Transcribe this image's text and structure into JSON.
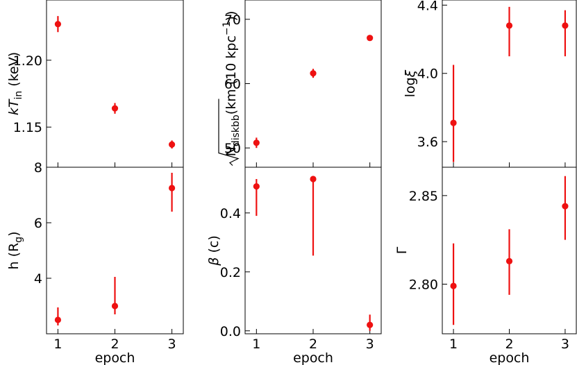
{
  "chart_data": [
    {
      "type": "scatter",
      "panel": "kTin",
      "x": [
        1,
        2,
        3
      ],
      "y": [
        1.227,
        1.164,
        1.137
      ],
      "yerr_low": [
        0.006,
        0.004,
        0.003
      ],
      "yerr_high": [
        0.006,
        0.004,
        0.003
      ],
      "xlim": [
        0.8,
        3.2
      ],
      "ylim": [
        1.12,
        1.245
      ],
      "yticks": [
        1.15,
        1.2
      ],
      "ytick_labels": [
        "1.15",
        "1.20"
      ],
      "xticks": [
        1,
        2,
        3
      ],
      "xtick_labels": [],
      "ylabel_parts": [
        "kT",
        "in",
        " (keV)"
      ],
      "xlabel": ""
    },
    {
      "type": "scatter",
      "panel": "Ndisk",
      "x": [
        1,
        2,
        3
      ],
      "y": [
        50.8,
        61.6,
        67.1
      ],
      "yerr_low": [
        0.8,
        0.7,
        0.3
      ],
      "yerr_high": [
        0.8,
        0.7,
        0.3
      ],
      "xlim": [
        0.8,
        3.2
      ],
      "ylim": [
        47,
        73
      ],
      "yticks": [
        50,
        60,
        70
      ],
      "ytick_labels": [
        "50",
        "60",
        "70"
      ],
      "xticks": [
        1,
        2,
        3
      ],
      "xtick_labels": [],
      "ylabel_parts": [
        "N",
        "diskbb",
        "(km (10 kpc",
        "−1",
        "))"
      ],
      "xlabel": ""
    },
    {
      "type": "scatter",
      "panel": "logxi",
      "x": [
        1,
        2,
        3
      ],
      "y": [
        3.71,
        4.28,
        4.28
      ],
      "yerr_low": [
        0.23,
        0.18,
        0.18
      ],
      "yerr_high": [
        0.34,
        0.11,
        0.09
      ],
      "xlim": [
        0.8,
        3.2
      ],
      "ylim": [
        3.45,
        4.43
      ],
      "yticks": [
        3.6,
        4.0,
        4.4
      ],
      "ytick_labels": [
        "3.6",
        "4.0",
        "4.4"
      ],
      "xticks": [
        1,
        2,
        3
      ],
      "xtick_labels": [],
      "ylabel_parts": [
        "log",
        "ξ"
      ],
      "xlabel": ""
    },
    {
      "type": "scatter",
      "panel": "h",
      "x": [
        1,
        2,
        3
      ],
      "y": [
        2.5,
        3.0,
        7.25
      ],
      "yerr_low": [
        0.2,
        0.3,
        0.85
      ],
      "yerr_high": [
        0.45,
        1.05,
        0.55
      ],
      "xlim": [
        0.8,
        3.2
      ],
      "ylim": [
        2.0,
        8.0
      ],
      "yticks": [
        4,
        6,
        8
      ],
      "ytick_labels": [
        "4",
        "6",
        "8"
      ],
      "xticks": [
        1,
        2,
        3
      ],
      "xtick_labels": [
        "1",
        "2",
        "3"
      ],
      "ylabel_parts": [
        "h (R",
        "g",
        ")"
      ],
      "xlabel": "epoch"
    },
    {
      "type": "scatter",
      "panel": "beta",
      "x": [
        1,
        2,
        3
      ],
      "y": [
        0.49,
        0.515,
        0.02
      ],
      "yerr_low": [
        0.1,
        0.26,
        0.02
      ],
      "yerr_high": [
        0.025,
        0.0,
        0.035
      ],
      "xlim": [
        0.8,
        3.2
      ],
      "ylim": [
        -0.01,
        0.555
      ],
      "yticks": [
        0.0,
        0.2,
        0.4
      ],
      "ytick_labels": [
        "0.0",
        "0.2",
        "0.4"
      ],
      "xticks": [
        1,
        2,
        3
      ],
      "xtick_labels": [
        "1",
        "2",
        "3"
      ],
      "ylabel_parts": [
        "β",
        " (c)"
      ],
      "xlabel": "epoch"
    },
    {
      "type": "scatter",
      "panel": "Gamma",
      "x": [
        1,
        2,
        3
      ],
      "y": [
        2.799,
        2.813,
        2.844
      ],
      "yerr_low": [
        0.022,
        0.019,
        0.019
      ],
      "yerr_high": [
        0.024,
        0.018,
        0.017
      ],
      "xlim": [
        0.8,
        3.2
      ],
      "ylim": [
        2.772,
        2.866
      ],
      "yticks": [
        2.8,
        2.85
      ],
      "ytick_labels": [
        "2.80",
        "2.85"
      ],
      "xticks": [
        1,
        2,
        3
      ],
      "xtick_labels": [
        "1",
        "2",
        "3"
      ],
      "ylabel_parts": [
        "Γ"
      ],
      "xlabel": "epoch"
    }
  ],
  "colors": {
    "points": "#ee1111",
    "axes": "#000000"
  }
}
